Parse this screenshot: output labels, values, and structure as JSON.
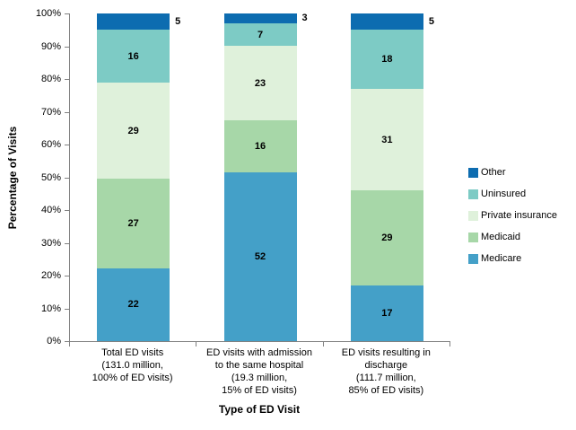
{
  "chart_data": {
    "type": "bar",
    "variant": "stacked-100-percent",
    "title": "",
    "xlabel": "Type of ED Visit",
    "ylabel": "Percentage of Visits",
    "ylim": [
      0,
      100
    ],
    "ytick_step": 10,
    "ytick_labels": [
      "0%",
      "10%",
      "20%",
      "30%",
      "40%",
      "50%",
      "60%",
      "70%",
      "80%",
      "90%",
      "100%"
    ],
    "grid": false,
    "categories": [
      {
        "lines": [
          "Total ED visits",
          "(131.0 million,",
          "100% of ED visits)"
        ]
      },
      {
        "lines": [
          "ED visits with admission",
          "to the same hospital",
          "(19.3 million,",
          "15% of ED visits)"
        ]
      },
      {
        "lines": [
          "ED visits resulting in",
          "discharge",
          "(111.7 million,",
          "85% of ED visits)"
        ]
      }
    ],
    "series": [
      {
        "name": "Medicare",
        "color": "#44A0C8",
        "values": [
          22,
          52,
          17
        ]
      },
      {
        "name": "Medicaid",
        "color": "#A7D7A8",
        "values": [
          27,
          16,
          29
        ]
      },
      {
        "name": "Private insurance",
        "color": "#DFF1DB",
        "values": [
          29,
          23,
          31
        ]
      },
      {
        "name": "Uninsured",
        "color": "#7DCBC5",
        "values": [
          16,
          7,
          18
        ]
      },
      {
        "name": "Other",
        "color": "#0D6CB0",
        "values": [
          5,
          3,
          5
        ]
      }
    ],
    "data_label_outside_series": "Other",
    "legend": {
      "position": "right",
      "items": [
        "Other",
        "Uninsured",
        "Private insurance",
        "Medicaid",
        "Medicare"
      ]
    },
    "axis_line_color": "#808080",
    "text_color": "#000000"
  }
}
